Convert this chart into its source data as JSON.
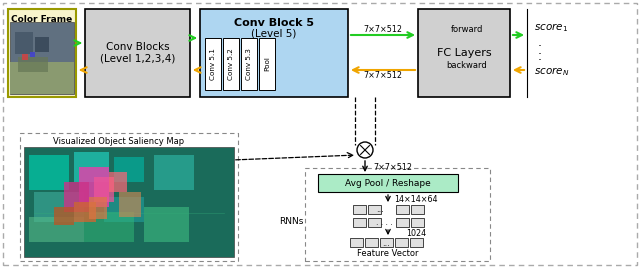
{
  "fig_width": 6.4,
  "fig_height": 2.68,
  "dpi": 100,
  "bg_color": "#ffffff",
  "box_gray": "#d0d0d0",
  "box_blue": "#aed6f1",
  "box_green_light": "#abebc6",
  "arrow_green": "#22cc22",
  "arrow_yellow": "#f0a500",
  "conv_block_labels": [
    "Conv 5.1",
    "Conv 5.2",
    "Conv 5.3",
    "Pool"
  ],
  "rnn_label": "RNNs",
  "feature_vector_label": "Feature Vector",
  "avg_pool_label": "Avg Pool / Reshape",
  "vis_map_label": "Visualized Object Saliency Map",
  "color_frame_label": "Color Frame",
  "conv_blocks_label": "Conv Blocks\n(Level 1,2,3,4)",
  "conv_block5_title1": "Conv Block 5",
  "conv_block5_title2": "(Level 5)",
  "fc_layers_label": "FC Layers",
  "forward_label": "forward",
  "backward_label": "backward",
  "dim_top": "7×7×512",
  "dim_bot": "7×7×512",
  "dim_mid": "7×7×512",
  "dim_14": "14×14×64",
  "dim_1024": "1024"
}
